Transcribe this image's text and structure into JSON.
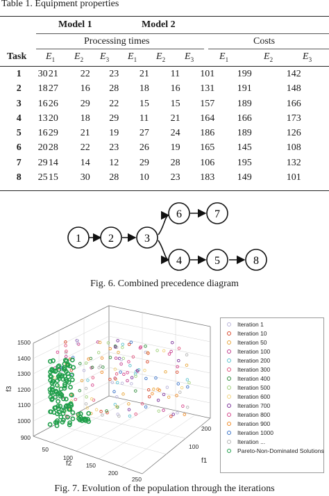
{
  "table": {
    "caption": "Table 1. Equipment properties",
    "model1": "Model 1",
    "model2": "Model 2",
    "processing_times": "Processing times",
    "costs": "Costs",
    "task_header": "Task",
    "columns": [
      "E1",
      "E2",
      "E3",
      "E1",
      "E2",
      "E3",
      "E1",
      "E2",
      "E3"
    ],
    "rows": [
      {
        "task": "1",
        "values": [
          "30",
          "21",
          "22",
          "23",
          "21",
          "11",
          "101",
          "199",
          "142"
        ]
      },
      {
        "task": "2",
        "values": [
          "18",
          "27",
          "16",
          "28",
          "18",
          "16",
          "131",
          "191",
          "148"
        ]
      },
      {
        "task": "3",
        "values": [
          "16",
          "26",
          "29",
          "22",
          "15",
          "15",
          "157",
          "189",
          "166"
        ]
      },
      {
        "task": "4",
        "values": [
          "13",
          "20",
          "18",
          "29",
          "11",
          "21",
          "164",
          "166",
          "173"
        ]
      },
      {
        "task": "5",
        "values": [
          "16",
          "29",
          "21",
          "19",
          "27",
          "24",
          "186",
          "189",
          "126"
        ]
      },
      {
        "task": "6",
        "values": [
          "20",
          "28",
          "22",
          "23",
          "26",
          "19",
          "165",
          "145",
          "108"
        ]
      },
      {
        "task": "7",
        "values": [
          "29",
          "14",
          "14",
          "12",
          "29",
          "28",
          "106",
          "195",
          "132"
        ]
      },
      {
        "task": "8",
        "values": [
          "25",
          "15",
          "30",
          "28",
          "10",
          "23",
          "183",
          "149",
          "101"
        ]
      }
    ]
  },
  "fig6": {
    "caption": "Fig. 6. Combined precedence diagram",
    "nodes": [
      "1",
      "2",
      "3",
      "4",
      "5",
      "6",
      "7",
      "8"
    ]
  },
  "fig7": {
    "caption": "Fig. 7. Evolution of the population through the iterations",
    "legend": [
      {
        "label": "Iteration 1",
        "color": "#b9b3d9"
      },
      {
        "label": "Iteration 10",
        "color": "#d9472b"
      },
      {
        "label": "Iteration 50",
        "color": "#e8a53a"
      },
      {
        "label": "Iteration 100",
        "color": "#c03a8c"
      },
      {
        "label": "Iteration 200",
        "color": "#5cc2cf"
      },
      {
        "label": "Iteration 300",
        "color": "#e0507a"
      },
      {
        "label": "Iteration 400",
        "color": "#2e8b3a"
      },
      {
        "label": "Iteration 500",
        "color": "#9fd17a"
      },
      {
        "label": "Iteration 600",
        "color": "#f2d27a"
      },
      {
        "label": "Iteration 700",
        "color": "#7a2f98"
      },
      {
        "label": "Iteration 800",
        "color": "#d6438a"
      },
      {
        "label": "Iteration 900",
        "color": "#f08a24"
      },
      {
        "label": "Iteration 1000",
        "color": "#3a73c8"
      },
      {
        "label": "Iteration ...",
        "color": "#b3b3b3"
      },
      {
        "label": "Pareto-Non-Dominated Solutions",
        "color": "#1f9e4a"
      }
    ],
    "z_label": "f3",
    "x_label": "f2",
    "y_label": "f1",
    "z_ticks": [
      "1500",
      "1400",
      "1300",
      "1200",
      "1100",
      "1000",
      "900"
    ],
    "x_ticks": [
      "50",
      "100",
      "150",
      "200",
      "250"
    ],
    "y_ticks": [
      "100",
      "200"
    ]
  }
}
